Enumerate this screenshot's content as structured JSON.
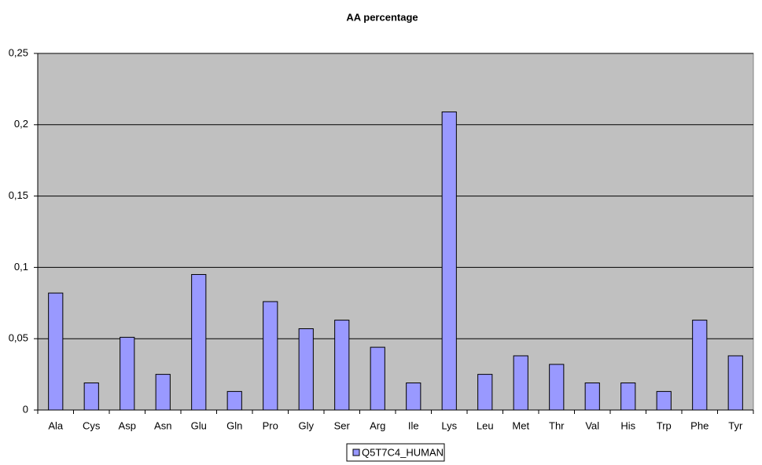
{
  "chart_data": {
    "type": "bar",
    "title": "AA percentage",
    "categories": [
      "Ala",
      "Cys",
      "Asp",
      "Asn",
      "Glu",
      "Gln",
      "Pro",
      "Gly",
      "Ser",
      "Arg",
      "Ile",
      "Lys",
      "Leu",
      "Met",
      "Thr",
      "Val",
      "His",
      "Trp",
      "Phe",
      "Tyr"
    ],
    "series": [
      {
        "name": "Q5T7C4_HUMAN",
        "color": "#9999ff",
        "values": [
          0.082,
          0.019,
          0.051,
          0.025,
          0.095,
          0.013,
          0.076,
          0.057,
          0.063,
          0.044,
          0.019,
          0.209,
          0.025,
          0.038,
          0.032,
          0.019,
          0.019,
          0.013,
          0.063,
          0.038
        ]
      }
    ],
    "ylim": [
      0,
      0.25
    ],
    "yticks": [
      0,
      {
        "value": 0.05,
        "label": "0,05"
      },
      {
        "value": 0.1,
        "label": "0,1"
      },
      {
        "value": 0.15,
        "label": "0,15"
      },
      {
        "value": 0.2,
        "label": "0,2"
      },
      {
        "value": 0.25,
        "label": "0,25"
      }
    ],
    "grid": true,
    "legend": "bottom",
    "plot_background": "#c0c0c0"
  }
}
